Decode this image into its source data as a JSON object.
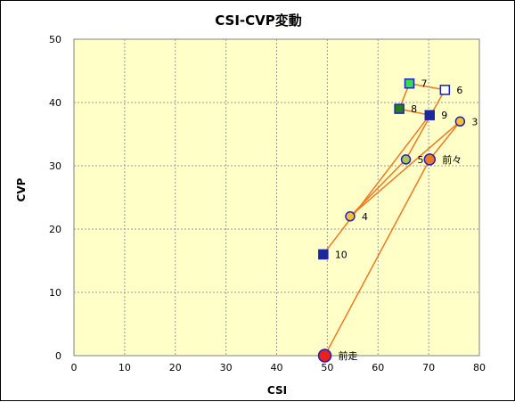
{
  "chart_data": {
    "type": "scatter",
    "title": "CSI-CVP変動",
    "xlabel": "CSI",
    "ylabel": "CVP",
    "xlim": [
      0,
      80
    ],
    "ylim": [
      0,
      50
    ],
    "xticks": [
      "0",
      "10",
      "20",
      "30",
      "40",
      "50",
      "60",
      "70",
      "80"
    ],
    "yticks": [
      "0",
      "10",
      "20",
      "30",
      "40",
      "50"
    ],
    "grid": true,
    "plot_background": "#ffffc8",
    "line_color": "#f07820",
    "points": [
      {
        "label": "前走",
        "x": 49.5,
        "y": 0,
        "shape": "circle",
        "fill": "#e82020",
        "stroke": "#2020c0",
        "size": 7
      },
      {
        "label": "前々",
        "x": 70.2,
        "y": 31,
        "shape": "circle",
        "fill": "#f07820",
        "stroke": "#2020c0",
        "size": 6
      },
      {
        "label": "3",
        "x": 76.2,
        "y": 37,
        "shape": "circle",
        "fill": "#f8c030",
        "stroke": "#2020c0",
        "size": 5
      },
      {
        "label": "4",
        "x": 54.5,
        "y": 22,
        "shape": "circle",
        "fill": "#f8c030",
        "stroke": "#2020c0",
        "size": 5
      },
      {
        "label": "5",
        "x": 65.5,
        "y": 31,
        "shape": "circle",
        "fill": "#a8c850",
        "stroke": "#2020c0",
        "size": 5
      },
      {
        "label": "6",
        "x": 73.2,
        "y": 42,
        "shape": "square",
        "fill": "#ffffff",
        "stroke": "#2020c0",
        "size": 5
      },
      {
        "label": "7",
        "x": 66.2,
        "y": 43,
        "shape": "square",
        "fill": "#30e040",
        "stroke": "#2020c0",
        "size": 5
      },
      {
        "label": "8",
        "x": 64.2,
        "y": 39,
        "shape": "square",
        "fill": "#208020",
        "stroke": "#2020c0",
        "size": 5
      },
      {
        "label": "9",
        "x": 70.2,
        "y": 38,
        "shape": "square",
        "fill": "#1a2a90",
        "stroke": "#2020c0",
        "size": 5
      },
      {
        "label": "10",
        "x": 49.2,
        "y": 16,
        "shape": "square",
        "fill": "#1a2a90",
        "stroke": "#2020c0",
        "size": 5
      }
    ]
  }
}
